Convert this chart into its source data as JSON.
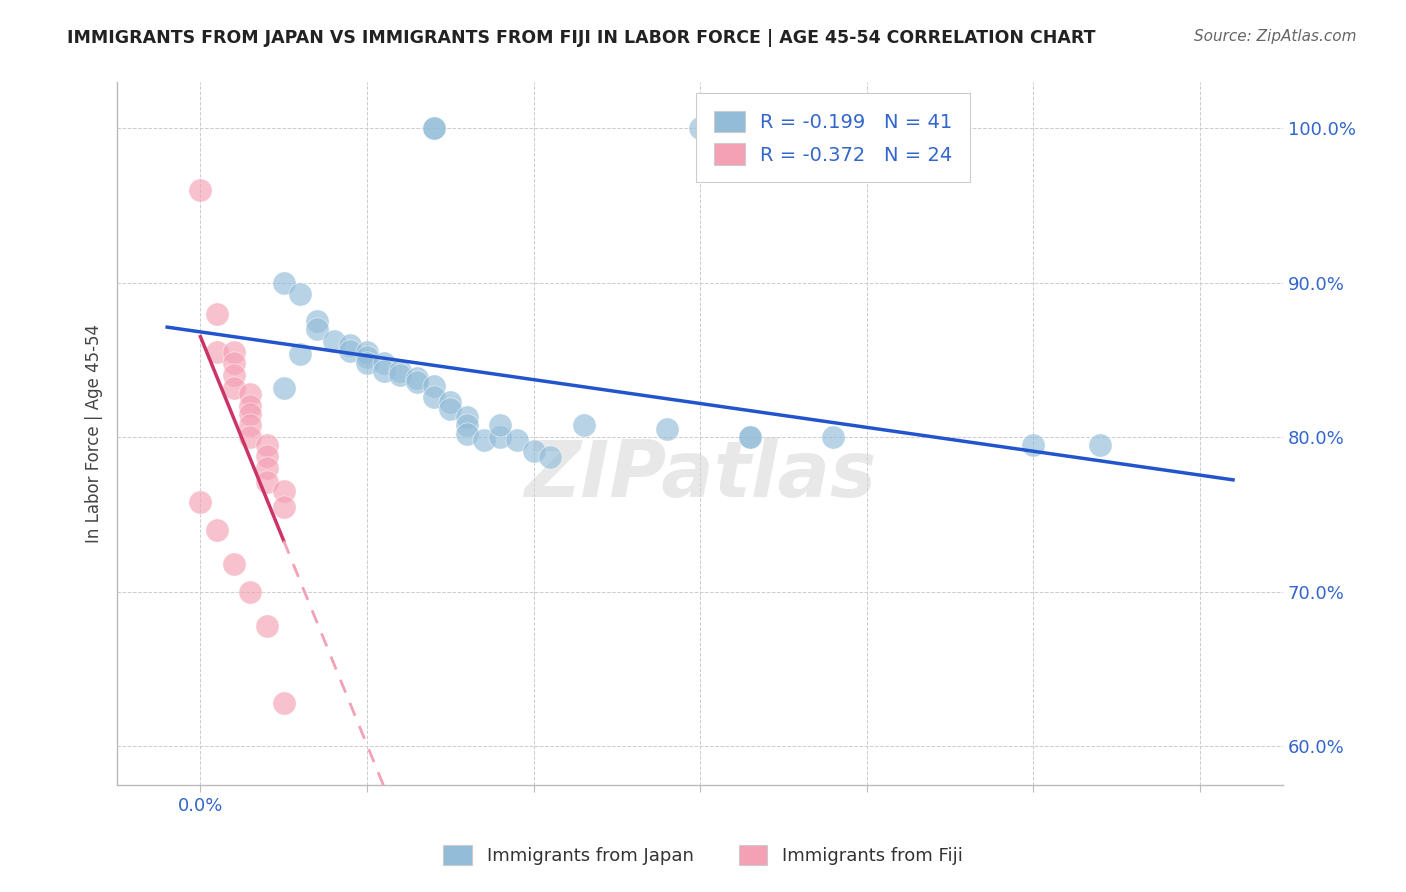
{
  "title": "IMMIGRANTS FROM JAPAN VS IMMIGRANTS FROM FIJI IN LABOR FORCE | AGE 45-54 CORRELATION CHART",
  "source": "Source: ZipAtlas.com",
  "ylabel": "In Labor Force | Age 45-54",
  "r_japan": -0.199,
  "n_japan": 41,
  "r_fiji": -0.372,
  "n_fiji": 24,
  "japan_color": "#92bcd8",
  "fiji_color": "#f4a0b5",
  "japan_line_color": "#2255cc",
  "fiji_line_solid_color": "#cc3366",
  "fiji_line_dash_color": "#f4a0b5",
  "axis_label_color": "#3366cc",
  "title_color": "#222222",
  "watermark": "ZIPatlas",
  "legend_label_japan": "Immigrants from Japan",
  "legend_label_fiji": "Immigrants from Fiji",
  "xlim_min": -0.0005,
  "xlim_max": 0.0065,
  "ylim_min": 0.575,
  "ylim_max": 1.03,
  "ytick_vals": [
    0.6,
    0.7,
    0.8,
    0.9,
    1.0
  ],
  "ytick_labels": [
    "60.0%",
    "70.0%",
    "80.0%",
    "90.0%",
    "100.0%"
  ],
  "xtick_vals": [
    0.0,
    0.001,
    0.002,
    0.003,
    0.004,
    0.005,
    0.006
  ],
  "xtick_labels": [
    "0.0%",
    "",
    "",
    "",
    "",
    "",
    ""
  ],
  "japan_x": [
    0.0014,
    0.0014,
    0.003,
    0.0005,
    0.0006,
    0.0007,
    0.0007,
    0.0008,
    0.0009,
    0.0009,
    0.001,
    0.001,
    0.001,
    0.0011,
    0.0011,
    0.0012,
    0.0012,
    0.0013,
    0.0013,
    0.0014,
    0.0014,
    0.0015,
    0.0015,
    0.0016,
    0.0016,
    0.0016,
    0.0017,
    0.0018,
    0.0019,
    0.002,
    0.0021,
    0.0028,
    0.0033,
    0.0033,
    0.0038,
    0.0054,
    0.005,
    0.0005,
    0.0006,
    0.0018,
    0.0023
  ],
  "japan_y": [
    1.0,
    1.0,
    1.0,
    0.9,
    0.893,
    0.875,
    0.87,
    0.862,
    0.86,
    0.856,
    0.855,
    0.852,
    0.848,
    0.848,
    0.843,
    0.843,
    0.84,
    0.838,
    0.836,
    0.833,
    0.826,
    0.823,
    0.818,
    0.813,
    0.808,
    0.802,
    0.798,
    0.8,
    0.798,
    0.791,
    0.787,
    0.805,
    0.8,
    0.8,
    0.8,
    0.795,
    0.795,
    0.832,
    0.854,
    0.808,
    0.808
  ],
  "fiji_x": [
    0.0,
    0.0001,
    0.0001,
    0.0002,
    0.0002,
    0.0002,
    0.0002,
    0.0003,
    0.0003,
    0.0003,
    0.0003,
    0.0003,
    0.0004,
    0.0004,
    0.0004,
    0.0004,
    0.0005,
    0.0005,
    0.0,
    0.0001,
    0.0002,
    0.0003,
    0.0004,
    0.0005
  ],
  "fiji_y": [
    0.96,
    0.88,
    0.855,
    0.855,
    0.848,
    0.84,
    0.832,
    0.828,
    0.82,
    0.815,
    0.808,
    0.8,
    0.795,
    0.788,
    0.78,
    0.771,
    0.765,
    0.755,
    0.758,
    0.74,
    0.718,
    0.7,
    0.678,
    0.628
  ]
}
